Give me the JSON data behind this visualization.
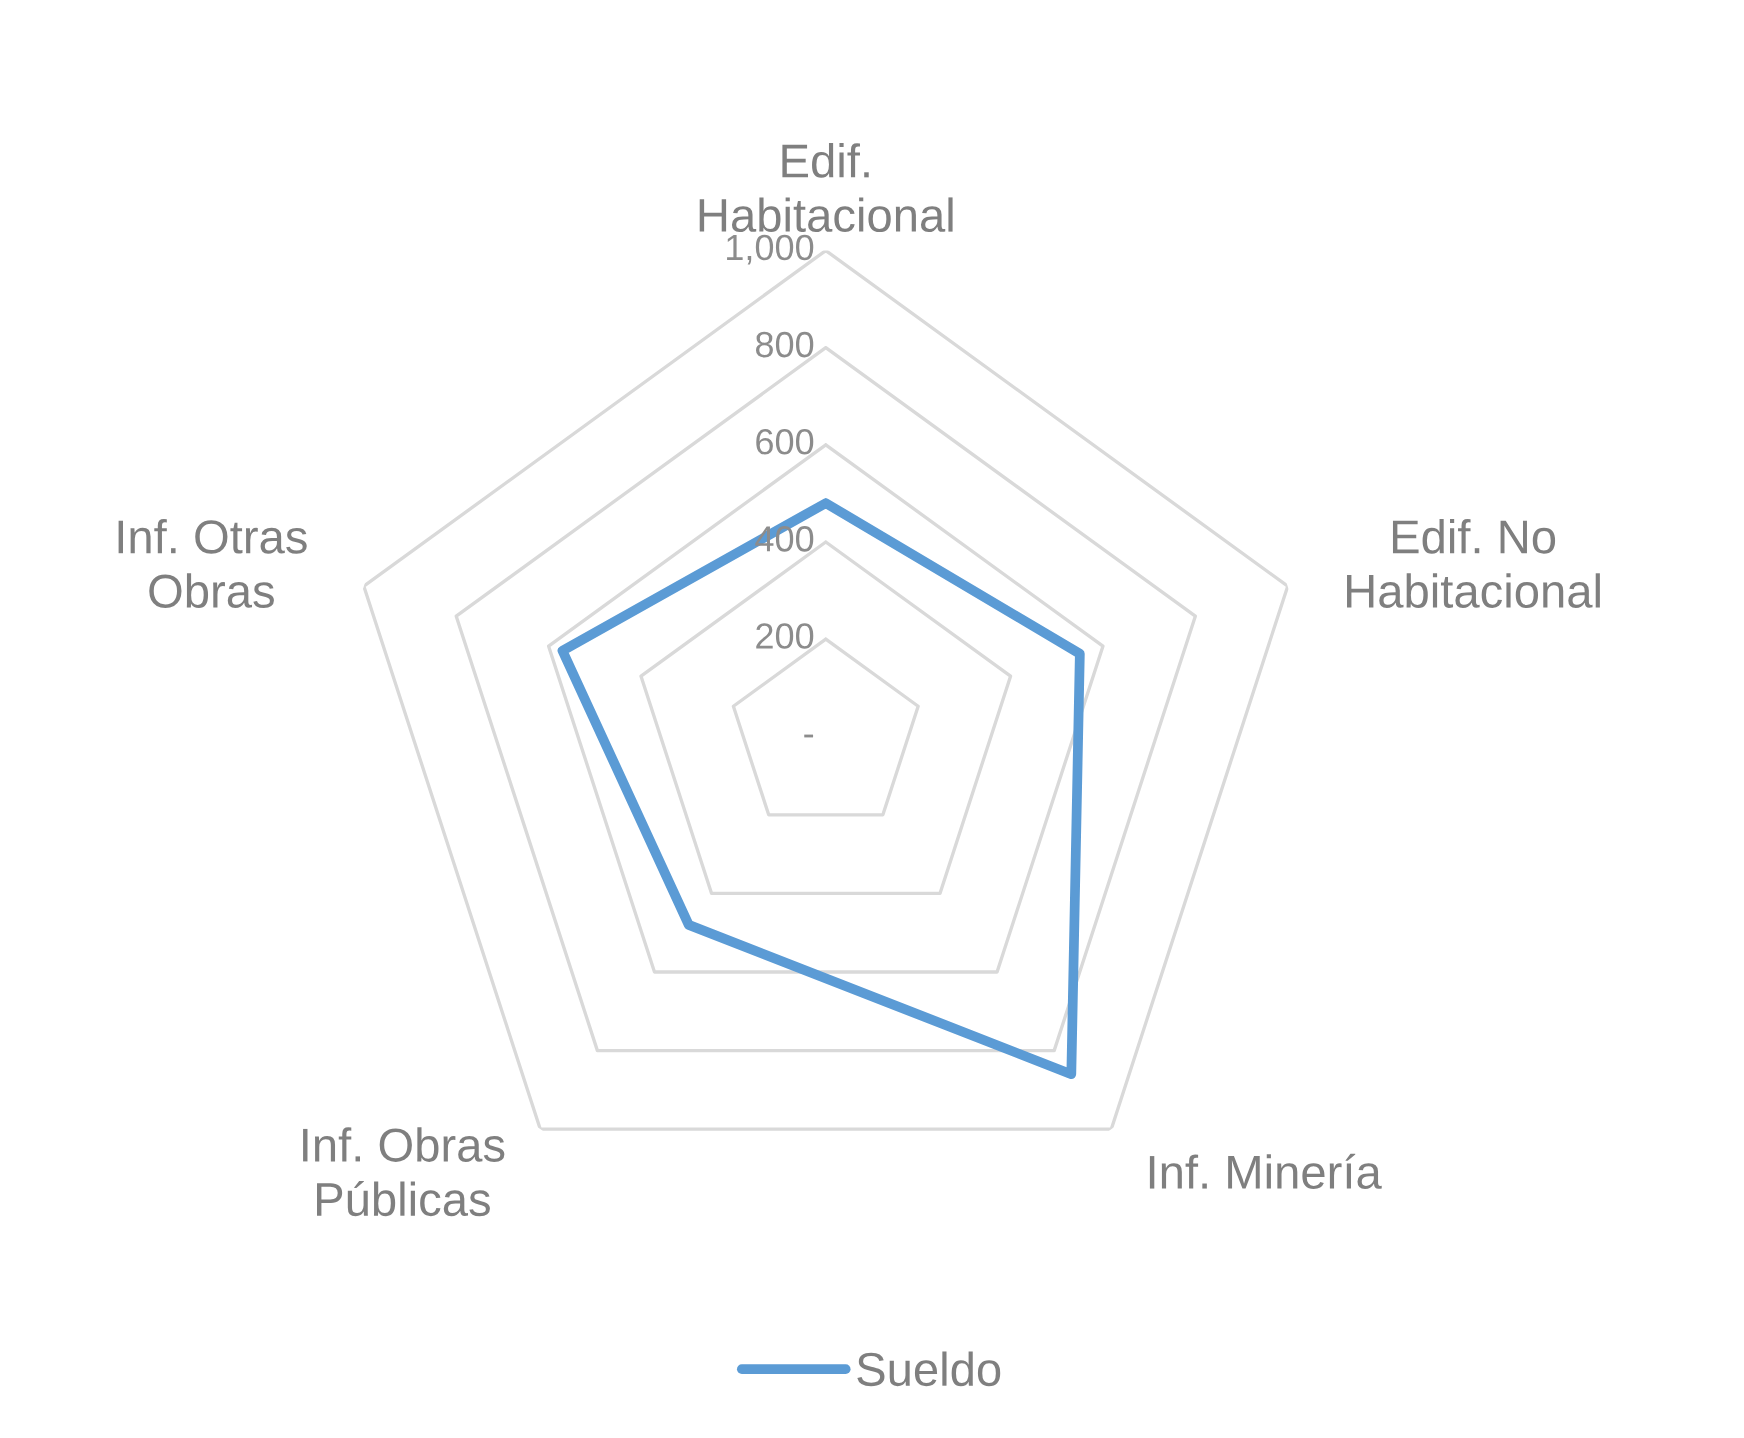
{
  "chart_data": {
    "type": "radar",
    "categories": [
      "Edif.\nHabitacional",
      "Edif. No\nHabitacional",
      "Inf. Minería",
      "Inf. Obras\nPúblicas",
      "Inf. Otras\nObras"
    ],
    "series": [
      {
        "name": "Sueldo",
        "color": "#5b9bd5",
        "values": [
          480,
          550,
          860,
          480,
          570
        ]
      }
    ],
    "ylim": [
      0,
      1000
    ],
    "yticks": [
      {
        "value": 0,
        "label": "-"
      },
      200,
      400,
      600,
      800,
      {
        "value": 1000,
        "label": "1,000"
      }
    ],
    "grid": true,
    "legend": "bottom"
  }
}
